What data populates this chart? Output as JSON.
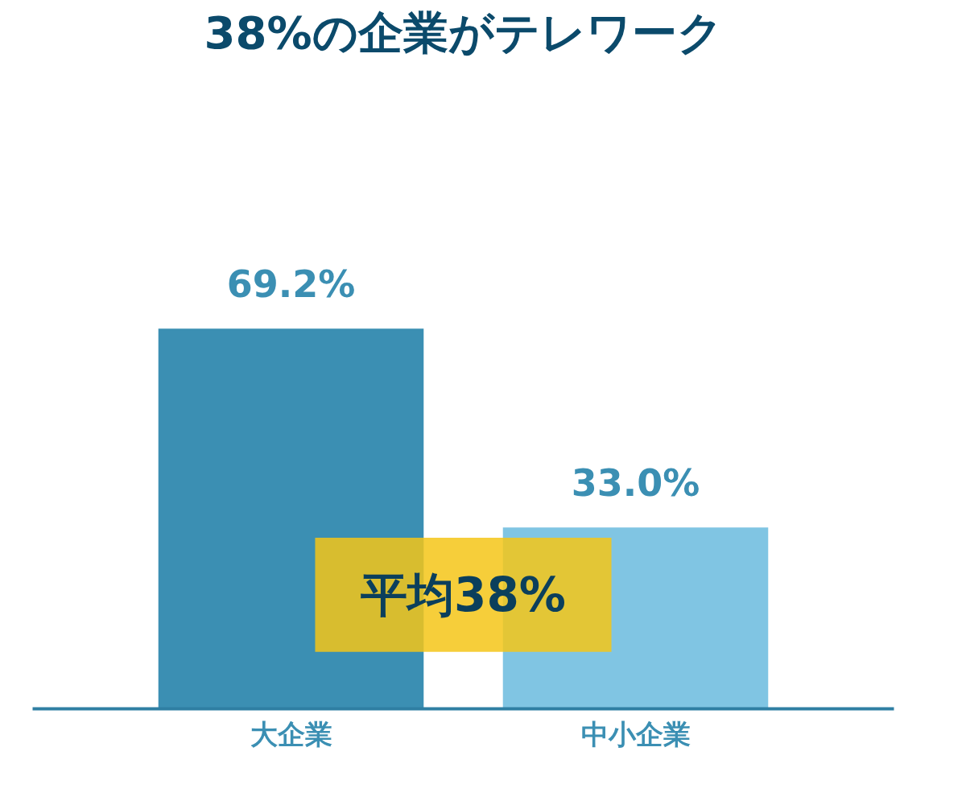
{
  "chart_data": {
    "type": "bar",
    "title": "38%の企業がテレワーク",
    "categories": [
      "大企業",
      "中小企業"
    ],
    "values": [
      69.2,
      33.0
    ],
    "colors": [
      "#3b8fb3",
      "#80c5e3"
    ],
    "value_labels": [
      "69.2%",
      "33.0%"
    ],
    "annotations": [
      "平均38%"
    ],
    "grid": false
  }
}
